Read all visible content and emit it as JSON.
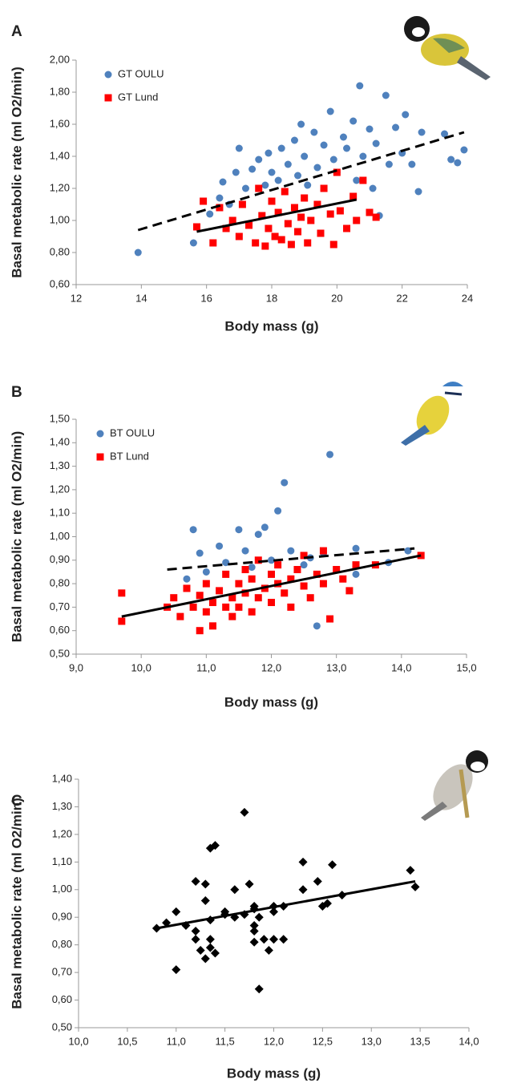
{
  "chart_data": [
    {
      "type": "scatter",
      "panel": "A",
      "x_label": "Body mass (g)",
      "y_label": "Basal metabolic rate (ml O2/min)",
      "legend": "upper left",
      "xlim": [
        12,
        24
      ],
      "xticks": [
        12,
        14,
        16,
        18,
        20,
        22,
        24
      ],
      "ylim": [
        0.6,
        2.0
      ],
      "yticks": [
        {
          "value": 0.6,
          "label": "0,60"
        },
        {
          "value": 0.8,
          "label": "0,80"
        },
        {
          "value": 1.0,
          "label": "1,00"
        },
        {
          "value": 1.2,
          "label": "1,20"
        },
        {
          "value": 1.4,
          "label": "1,40"
        },
        {
          "value": 1.6,
          "label": "1,60"
        },
        {
          "value": 1.8,
          "label": "1,80"
        },
        {
          "value": 2.0,
          "label": "2,00"
        }
      ],
      "series": [
        {
          "name": "GT OULU",
          "color": "#4f81bd",
          "marker": "circle",
          "x": [
            13.9,
            15.6,
            16.1,
            16.4,
            16.5,
            16.7,
            16.9,
            17.0,
            17.2,
            17.4,
            17.6,
            17.8,
            17.9,
            18.0,
            18.2,
            18.3,
            18.5,
            18.7,
            18.8,
            18.9,
            19.0,
            19.1,
            19.3,
            19.4,
            19.6,
            19.8,
            19.9,
            20.0,
            20.2,
            20.3,
            20.5,
            20.6,
            20.7,
            20.8,
            21.0,
            21.1,
            21.2,
            21.3,
            21.5,
            21.6,
            21.8,
            22.0,
            22.1,
            22.3,
            22.5,
            22.6,
            23.3,
            23.5,
            23.7,
            23.9
          ],
          "values": [
            0.8,
            0.86,
            1.04,
            1.14,
            1.24,
            1.1,
            1.3,
            1.45,
            1.2,
            1.32,
            1.38,
            1.22,
            1.42,
            1.3,
            1.25,
            1.45,
            1.35,
            1.5,
            1.28,
            1.6,
            1.4,
            1.22,
            1.55,
            1.33,
            1.47,
            1.68,
            1.38,
            1.3,
            1.52,
            1.45,
            1.62,
            1.25,
            1.84,
            1.4,
            1.57,
            1.2,
            1.48,
            1.03,
            1.78,
            1.35,
            1.58,
            1.42,
            1.66,
            1.35,
            1.18,
            1.55,
            1.54,
            1.38,
            1.36,
            1.44
          ],
          "trend": {
            "style": "dashed",
            "x": [
              13.9,
              23.9
            ],
            "values": [
              0.94,
              1.55
            ]
          }
        },
        {
          "name": "GT Lund",
          "color": "#ff0000",
          "marker": "square",
          "x": [
            15.7,
            15.9,
            16.2,
            16.4,
            16.6,
            16.8,
            17.0,
            17.1,
            17.3,
            17.5,
            17.6,
            17.7,
            17.8,
            17.9,
            18.0,
            18.1,
            18.2,
            18.3,
            18.4,
            18.5,
            18.6,
            18.7,
            18.8,
            18.9,
            19.0,
            19.1,
            19.2,
            19.4,
            19.5,
            19.6,
            19.8,
            19.9,
            20.0,
            20.1,
            20.3,
            20.5,
            20.6,
            20.8,
            21.0,
            21.2
          ],
          "values": [
            0.96,
            1.12,
            0.86,
            1.08,
            0.95,
            1.0,
            0.9,
            1.1,
            0.97,
            0.86,
            1.2,
            1.03,
            0.84,
            0.95,
            1.12,
            0.9,
            1.05,
            0.88,
            1.18,
            0.98,
            0.85,
            1.08,
            0.93,
            1.02,
            1.14,
            0.86,
            1.0,
            1.1,
            0.92,
            1.2,
            1.04,
            0.85,
            1.3,
            1.06,
            0.95,
            1.15,
            1.0,
            1.25,
            1.05,
            1.02
          ],
          "trend": {
            "style": "solid",
            "x": [
              15.7,
              20.6
            ],
            "values": [
              0.93,
              1.13
            ]
          }
        }
      ]
    },
    {
      "type": "scatter",
      "panel": "B",
      "x_label": "Body mass (g)",
      "y_label": "Basal metabolic rate (ml O2/min)",
      "legend": "upper left",
      "xlim": [
        9,
        15
      ],
      "xticks": [
        {
          "value": 9,
          "label": "9,0"
        },
        {
          "value": 10,
          "label": "10,0"
        },
        {
          "value": 11,
          "label": "11,0"
        },
        {
          "value": 12,
          "label": "12,0"
        },
        {
          "value": 13,
          "label": "13,0"
        },
        {
          "value": 14,
          "label": "14,0"
        },
        {
          "value": 15,
          "label": "15,0"
        }
      ],
      "ylim": [
        0.5,
        1.5
      ],
      "yticks": [
        {
          "value": 0.5,
          "label": "0,50"
        },
        {
          "value": 0.6,
          "label": "0,60"
        },
        {
          "value": 0.7,
          "label": "0,70"
        },
        {
          "value": 0.8,
          "label": "0,80"
        },
        {
          "value": 0.9,
          "label": "0,90"
        },
        {
          "value": 1.0,
          "label": "1,00"
        },
        {
          "value": 1.1,
          "label": "1,10"
        },
        {
          "value": 1.2,
          "label": "1,20"
        },
        {
          "value": 1.3,
          "label": "1,30"
        },
        {
          "value": 1.4,
          "label": "1,40"
        },
        {
          "value": 1.5,
          "label": "1,50"
        }
      ],
      "series": [
        {
          "name": "BT OULU",
          "color": "#4f81bd",
          "marker": "circle",
          "x": [
            10.8,
            11.2,
            11.5,
            11.6,
            11.8,
            11.9,
            12.1,
            12.2,
            12.3,
            12.6,
            12.7,
            12.8,
            12.9,
            13.3,
            13.3,
            13.8,
            14.1,
            10.7,
            10.9,
            11.0,
            11.3,
            11.7,
            12.0,
            12.5
          ],
          "values": [
            1.03,
            0.96,
            1.03,
            0.94,
            1.01,
            1.04,
            1.11,
            1.23,
            0.94,
            0.91,
            0.62,
            0.93,
            1.35,
            0.95,
            0.84,
            0.89,
            0.94,
            0.82,
            0.93,
            0.85,
            0.89,
            0.87,
            0.9,
            0.88
          ],
          "trend": {
            "style": "dashed",
            "x": [
              10.4,
              14.2
            ],
            "values": [
              0.86,
              0.95
            ]
          }
        },
        {
          "name": "BT Lund",
          "color": "#ff0000",
          "marker": "square",
          "x": [
            9.7,
            9.7,
            10.4,
            10.5,
            10.6,
            10.7,
            10.8,
            10.9,
            10.9,
            11.0,
            11.0,
            11.1,
            11.1,
            11.2,
            11.3,
            11.3,
            11.4,
            11.4,
            11.5,
            11.5,
            11.6,
            11.6,
            11.7,
            11.7,
            11.8,
            11.8,
            11.9,
            12.0,
            12.0,
            12.1,
            12.1,
            12.2,
            12.3,
            12.3,
            12.4,
            12.5,
            12.5,
            12.6,
            12.7,
            12.8,
            12.8,
            12.9,
            13.0,
            13.1,
            13.2,
            13.3,
            13.6,
            14.3
          ],
          "values": [
            0.76,
            0.64,
            0.7,
            0.74,
            0.66,
            0.78,
            0.7,
            0.6,
            0.75,
            0.68,
            0.8,
            0.72,
            0.62,
            0.77,
            0.7,
            0.84,
            0.66,
            0.74,
            0.8,
            0.7,
            0.86,
            0.76,
            0.68,
            0.82,
            0.74,
            0.9,
            0.78,
            0.72,
            0.84,
            0.8,
            0.88,
            0.76,
            0.82,
            0.7,
            0.86,
            0.79,
            0.92,
            0.74,
            0.84,
            0.8,
            0.94,
            0.65,
            0.86,
            0.82,
            0.77,
            0.88,
            0.88,
            0.92
          ],
          "trend": {
            "style": "solid",
            "x": [
              9.7,
              14.3
            ],
            "values": [
              0.66,
              0.92
            ]
          }
        }
      ]
    },
    {
      "type": "scatter",
      "panel": "C",
      "x_label": "Body mass (g)",
      "y_label": "Basal metabolic rate (ml O2/min)",
      "xlim": [
        10,
        14
      ],
      "xticks": [
        {
          "value": 10,
          "label": "10,0"
        },
        {
          "value": 10.5,
          "label": "10,5"
        },
        {
          "value": 11,
          "label": "11,0"
        },
        {
          "value": 11.5,
          "label": "11,5"
        },
        {
          "value": 12,
          "label": "12,0"
        },
        {
          "value": 12.5,
          "label": "12,5"
        },
        {
          "value": 13,
          "label": "13,0"
        },
        {
          "value": 13.5,
          "label": "13,5"
        },
        {
          "value": 14,
          "label": "14,0"
        }
      ],
      "ylim": [
        0.5,
        1.4
      ],
      "yticks": [
        {
          "value": 0.5,
          "label": "0,50"
        },
        {
          "value": 0.6,
          "label": "0,60"
        },
        {
          "value": 0.7,
          "label": "0,70"
        },
        {
          "value": 0.8,
          "label": "0,80"
        },
        {
          "value": 0.9,
          "label": "0,90"
        },
        {
          "value": 1.0,
          "label": "1,00"
        },
        {
          "value": 1.1,
          "label": "1,10"
        },
        {
          "value": 1.2,
          "label": "1,20"
        },
        {
          "value": 1.3,
          "label": "1,30"
        },
        {
          "value": 1.4,
          "label": "1,40"
        }
      ],
      "color": "#000000",
      "marker": "diamond",
      "x": [
        10.8,
        10.9,
        11.0,
        11.0,
        11.1,
        11.2,
        11.2,
        11.2,
        11.25,
        11.3,
        11.3,
        11.3,
        11.35,
        11.35,
        11.35,
        11.35,
        11.4,
        11.4,
        11.5,
        11.5,
        11.6,
        11.6,
        11.7,
        11.7,
        11.75,
        11.8,
        11.8,
        11.8,
        11.8,
        11.8,
        11.85,
        11.85,
        11.9,
        11.95,
        12.0,
        12.0,
        12.0,
        12.1,
        12.1,
        12.3,
        12.3,
        12.45,
        12.5,
        12.55,
        12.6,
        12.7,
        13.4,
        13.45
      ],
      "values": [
        0.86,
        0.88,
        0.71,
        0.92,
        0.87,
        1.03,
        0.85,
        0.82,
        0.78,
        1.02,
        0.96,
        0.75,
        1.15,
        0.89,
        0.82,
        0.79,
        1.16,
        0.77,
        0.92,
        0.91,
        0.9,
        1.0,
        1.28,
        0.91,
        1.02,
        0.94,
        0.93,
        0.87,
        0.85,
        0.81,
        0.9,
        0.64,
        0.82,
        0.78,
        0.94,
        0.92,
        0.82,
        0.94,
        0.82,
        1.1,
        1.0,
        1.03,
        0.94,
        0.95,
        1.09,
        0.98,
        1.07,
        1.01
      ],
      "trend": {
        "style": "solid",
        "x": [
          10.8,
          13.45
        ],
        "values": [
          0.86,
          1.03
        ]
      }
    }
  ]
}
